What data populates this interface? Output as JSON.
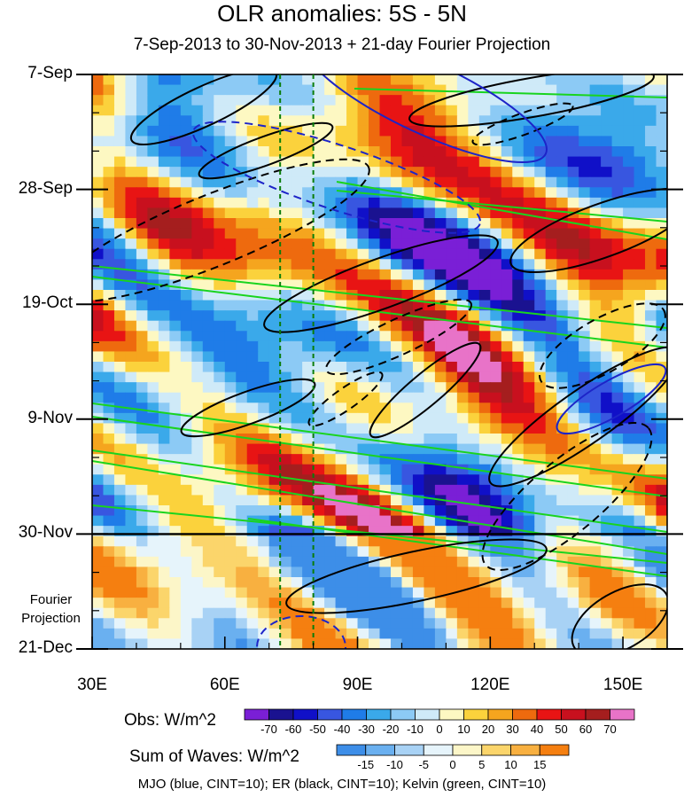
{
  "chart_data": {
    "type": "heatmap",
    "title": "OLR anomalies: 5S - 5N",
    "subtitle": "7-Sep-2013 to 30-Nov-2013 + 21-day Fourier Projection",
    "x_axis": {
      "ticks": [
        "30E",
        "60E",
        "90E",
        "120E",
        "150E"
      ],
      "tick_values": [
        30,
        60,
        90,
        120,
        150
      ],
      "range": [
        30,
        160
      ]
    },
    "y_axis": {
      "ticks": [
        "7-Sep",
        "28-Sep",
        "19-Oct",
        "9-Nov",
        "30-Nov",
        "21-Dec"
      ],
      "tick_days": [
        0,
        21,
        42,
        63,
        84,
        105
      ],
      "range_days": [
        0,
        105
      ],
      "direction": "downward"
    },
    "observation_end_day": 84,
    "projection_label": [
      "Fourier",
      "Projection"
    ],
    "reference_longitudes": [
      72.5,
      80
    ],
    "colorbar_obs": {
      "label": "Obs: W/m^2",
      "levels": [
        "-70",
        "-60",
        "-50",
        "-40",
        "-30",
        "-20",
        "-10",
        "0",
        "10",
        "20",
        "30",
        "40",
        "50",
        "60",
        "70"
      ],
      "colors": [
        "#7a1fd6",
        "#1a1290",
        "#1010c8",
        "#3856e0",
        "#1f7ce8",
        "#3aa9ea",
        "#8ccaf5",
        "#cfeaf8",
        "#fdf8c2",
        "#fbd23c",
        "#f5a51e",
        "#ee6a0e",
        "#e81414",
        "#c8101e",
        "#a51e1e",
        "#e873c8"
      ]
    },
    "colorbar_waves": {
      "label": "Sum of Waves: W/m^2",
      "levels": [
        "-15",
        "-10",
        "-5",
        "0",
        "5",
        "10",
        "15"
      ],
      "colors": [
        "#3d8ee8",
        "#6ab0f0",
        "#a8d2f5",
        "#e6f4fb",
        "#fcf6c8",
        "#fbd56b",
        "#f8b040",
        "#f57f10"
      ]
    },
    "wave_legend": "MJO (blue, CINT=10); ER (black, CINT=10); Kelvin (green, CINT=10)"
  }
}
